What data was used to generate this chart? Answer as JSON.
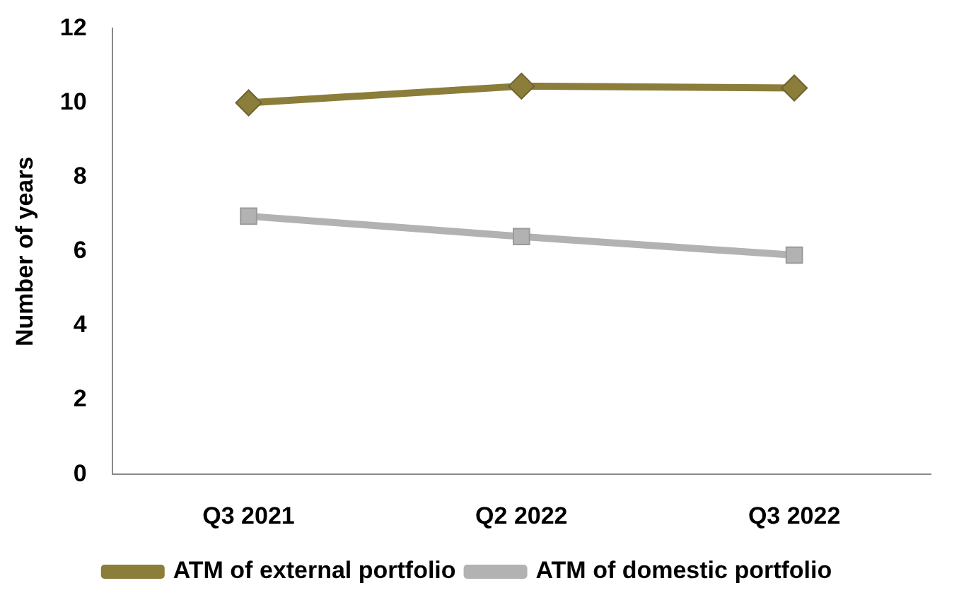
{
  "chart_data": {
    "type": "line",
    "ylabel": "Number of years",
    "categories": [
      "Q3 2021",
      "Q2 2022",
      "Q3 2022"
    ],
    "series": [
      {
        "name": "ATM of external portfolio",
        "color": "#8b7d3a",
        "marker": "diamond",
        "values": [
          10.0,
          10.45,
          10.4
        ]
      },
      {
        "name": "ATM of domestic portfolio",
        "color": "#b2b2b2",
        "marker": "square",
        "values": [
          6.95,
          6.4,
          5.9
        ]
      }
    ],
    "ylim": [
      0,
      12
    ],
    "yticks": [
      0,
      2,
      4,
      6,
      8,
      10,
      12
    ],
    "grid": false,
    "legend": "bottom"
  }
}
